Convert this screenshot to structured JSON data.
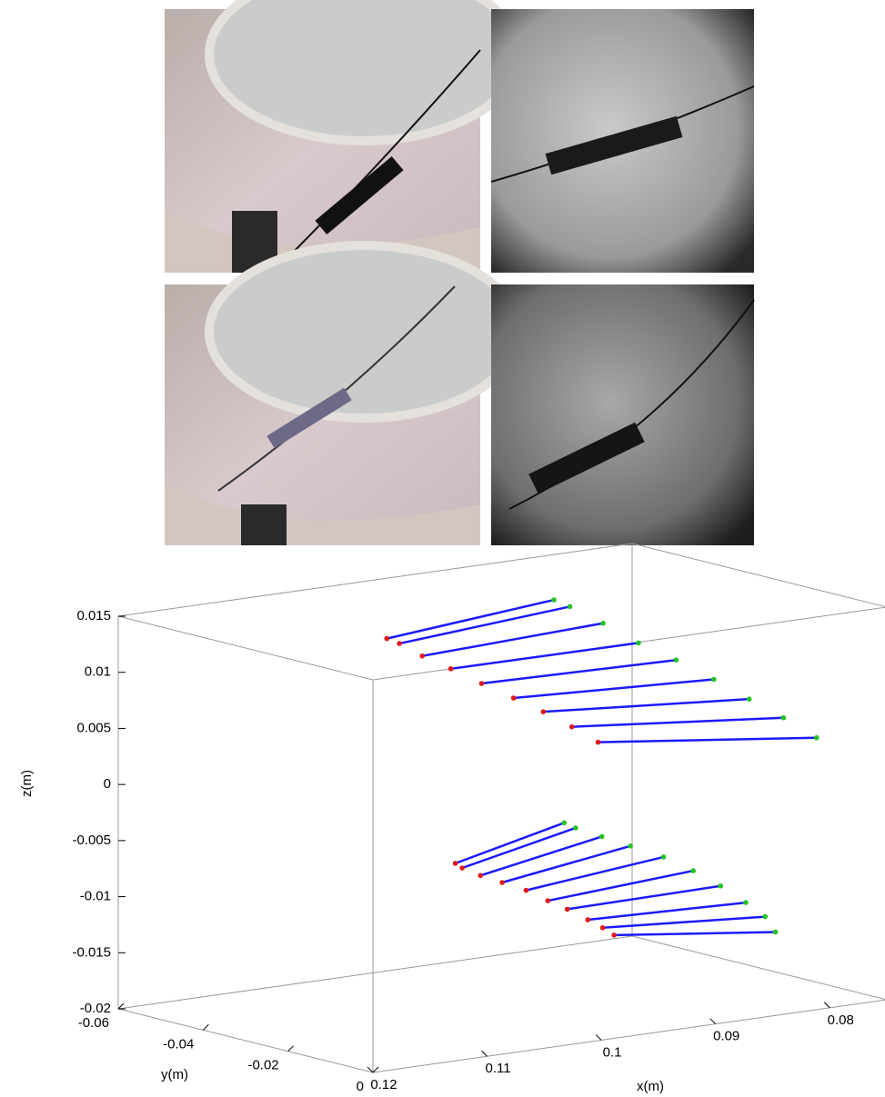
{
  "chart_data": {
    "type": "segments3d",
    "xlabel": "x(m)",
    "ylabel": "y(m)",
    "zlabel": "z(m)",
    "xlim": [
      0.075,
      0.12
    ],
    "ylim": [
      -0.06,
      0
    ],
    "zlim": [
      -0.02,
      0.015
    ],
    "xticks": [
      0.12,
      0.11,
      0.1,
      0.09,
      0.08
    ],
    "yticks": [
      -0.06,
      -0.04,
      -0.02,
      0
    ],
    "zticks": [
      0.015,
      0.01,
      0.005,
      0,
      -0.005,
      -0.01,
      -0.015,
      -0.02
    ],
    "line_color": "#1a1aff",
    "series": [
      {
        "color": "#e01818",
        "x": [
          0.1002,
          0.0991,
          0.0971,
          0.0946,
          0.0919,
          0.0891,
          0.0865,
          0.084,
          0.0817,
          0.0942,
          0.0936,
          0.092,
          0.0901,
          0.088,
          0.0861,
          0.0844,
          0.0826,
          0.0813,
          0.0803
        ],
        "y": [
          -0.05,
          -0.05,
          -0.05,
          -0.05,
          -0.05,
          -0.05,
          -0.05,
          -0.05,
          -0.05,
          -0.05,
          -0.05,
          -0.05,
          -0.05,
          -0.05,
          -0.05,
          -0.05,
          -0.05,
          -0.05,
          -0.05
        ],
        "z": [
          0.0111,
          0.0105,
          0.0091,
          0.0076,
          0.0059,
          0.0042,
          0.0026,
          0.0009,
          -0.0008,
          -0.0098,
          -0.0103,
          -0.0112,
          -0.0121,
          -0.0131,
          -0.0143,
          -0.0153,
          -0.0165,
          -0.0174,
          -0.0182
        ]
      },
      {
        "color": "#22c422",
        "x": [
          0.093,
          0.0916,
          0.0887,
          0.0856,
          0.0823,
          0.079,
          0.0759,
          0.0729,
          0.07,
          0.0921,
          0.0911,
          0.0888,
          0.0863,
          0.0834,
          0.0808,
          0.0784,
          0.0762,
          0.0745,
          0.0736
        ],
        "y": [
          -0.03,
          -0.03,
          -0.03,
          -0.03,
          -0.03,
          -0.03,
          -0.03,
          -0.03,
          -0.03,
          -0.03,
          -0.03,
          -0.03,
          -0.03,
          -0.03,
          -0.03,
          -0.03,
          -0.03,
          -0.03,
          -0.03
        ],
        "z": [
          0.0154,
          0.0146,
          0.0127,
          0.0105,
          0.0085,
          0.0063,
          0.0041,
          0.002,
          -0.0002,
          -0.0046,
          -0.0052,
          -0.0063,
          -0.0075,
          -0.0089,
          -0.0105,
          -0.0122,
          -0.014,
          -0.0155,
          -0.017
        ]
      }
    ]
  }
}
